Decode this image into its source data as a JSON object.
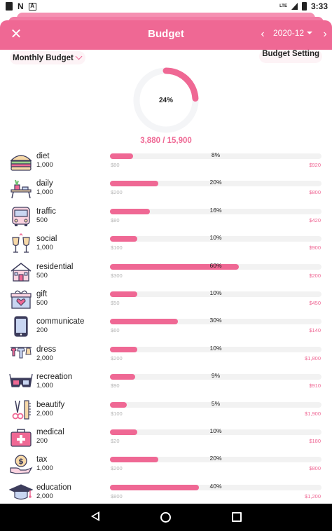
{
  "status_bar": {
    "time": "3:33",
    "network": "LTE"
  },
  "header": {
    "title": "Budget",
    "month": "2020-12",
    "close_icon": "close-icon",
    "prev_icon": "chevron-left-icon",
    "next_icon": "chevron-right-icon"
  },
  "controls": {
    "budget_type": "Monthly Budget",
    "settings_label": "Budget Setting"
  },
  "summary": {
    "percent_label": "24%",
    "percent_value": 0.24,
    "total_label": "3,880 / 15,900"
  },
  "colors": {
    "accent": "#ef6894",
    "track": "#f2f2f2",
    "muted": "#b5b5b5"
  },
  "categories": [
    {
      "name": "diet",
      "budget": "1,000",
      "percent_label": "8%",
      "fill": 0.11,
      "spent": "$80",
      "remaining": "$920",
      "icon": "burger-icon"
    },
    {
      "name": "daily",
      "budget": "1,000",
      "percent_label": "20%",
      "fill": 0.23,
      "spent": "$200",
      "remaining": "$800",
      "icon": "table-plant-icon"
    },
    {
      "name": "traffic",
      "budget": "500",
      "percent_label": "16%",
      "fill": 0.19,
      "spent": "$80",
      "remaining": "$420",
      "icon": "bus-icon"
    },
    {
      "name": "social",
      "budget": "1,000",
      "percent_label": "10%",
      "fill": 0.13,
      "spent": "$100",
      "remaining": "$900",
      "icon": "wine-glasses-icon"
    },
    {
      "name": "residential",
      "budget": "500",
      "percent_label": "60%",
      "fill": 0.61,
      "spent": "$300",
      "remaining": "$200",
      "icon": "house-icon"
    },
    {
      "name": "gift",
      "budget": "500",
      "percent_label": "10%",
      "fill": 0.13,
      "spent": "$50",
      "remaining": "$450",
      "icon": "gift-icon"
    },
    {
      "name": "communicate",
      "budget": "200",
      "percent_label": "30%",
      "fill": 0.32,
      "spent": "$60",
      "remaining": "$140",
      "icon": "phone-icon"
    },
    {
      "name": "dress",
      "budget": "2,000",
      "percent_label": "10%",
      "fill": 0.13,
      "spent": "$200",
      "remaining": "$1,800",
      "icon": "clothesline-icon"
    },
    {
      "name": "recreation",
      "budget": "1,000",
      "percent_label": "9%",
      "fill": 0.12,
      "spent": "$90",
      "remaining": "$910",
      "icon": "3d-glasses-icon"
    },
    {
      "name": "beautify",
      "budget": "2,000",
      "percent_label": "5%",
      "fill": 0.08,
      "spent": "$100",
      "remaining": "$1,900",
      "icon": "scissors-comb-icon"
    },
    {
      "name": "medical",
      "budget": "200",
      "percent_label": "10%",
      "fill": 0.13,
      "spent": "$20",
      "remaining": "$180",
      "icon": "first-aid-kit-icon"
    },
    {
      "name": "tax",
      "budget": "1,000",
      "percent_label": "20%",
      "fill": 0.23,
      "spent": "$200",
      "remaining": "$800",
      "icon": "coin-hand-icon"
    },
    {
      "name": "education",
      "budget": "2,000",
      "percent_label": "40%",
      "fill": 0.42,
      "spent": "$800",
      "remaining": "$1,200",
      "icon": "graduation-cap-icon"
    }
  ]
}
